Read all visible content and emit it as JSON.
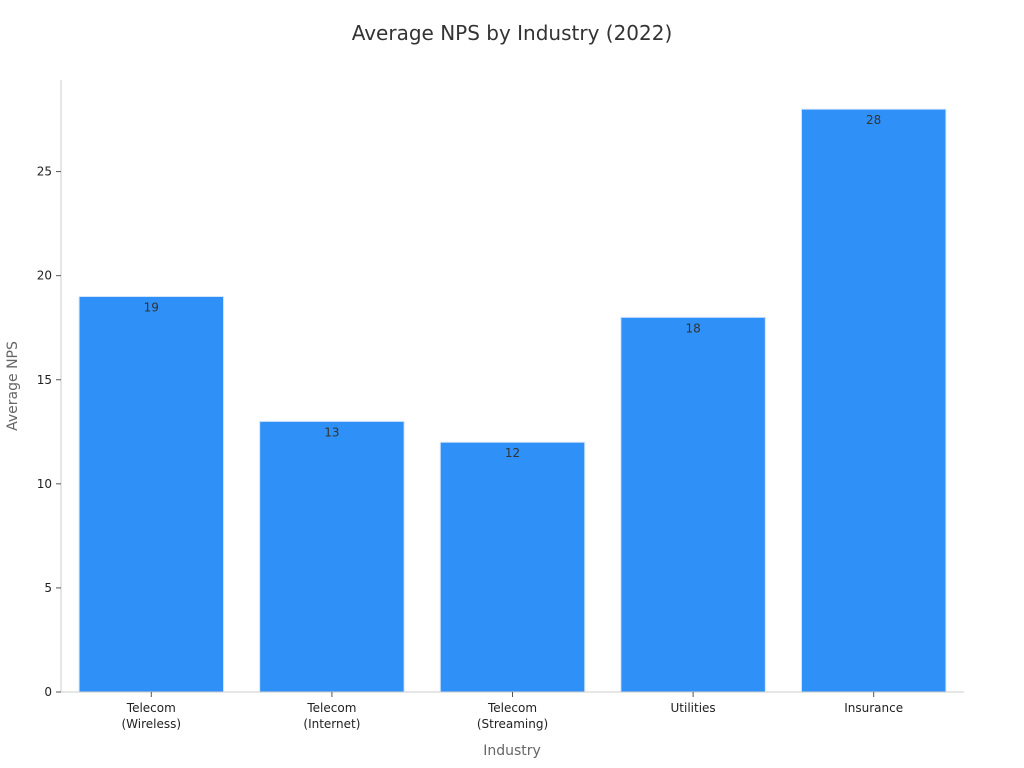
{
  "chart_data": {
    "type": "bar",
    "title": "Average NPS by Industry (2022)",
    "xlabel": "Industry",
    "ylabel": "Average NPS",
    "categories": [
      [
        "Telecom",
        "(Wireless)"
      ],
      [
        "Telecom",
        "(Internet)"
      ],
      [
        "Telecom",
        "(Streaming)"
      ],
      [
        "Utilities"
      ],
      [
        "Insurance"
      ]
    ],
    "values": [
      19,
      13,
      12,
      18,
      28
    ],
    "data_labels": [
      "19",
      "13",
      "12",
      "18",
      "28"
    ],
    "ylim": [
      0,
      29.4
    ],
    "yticks": [
      0,
      5,
      10,
      15,
      20,
      25
    ],
    "grid": false,
    "legend": "none",
    "colors": {
      "bar": "#2f91f7",
      "bar_edge": "#d6e6f7",
      "axis": "#cccccc",
      "text": "#222222"
    }
  }
}
